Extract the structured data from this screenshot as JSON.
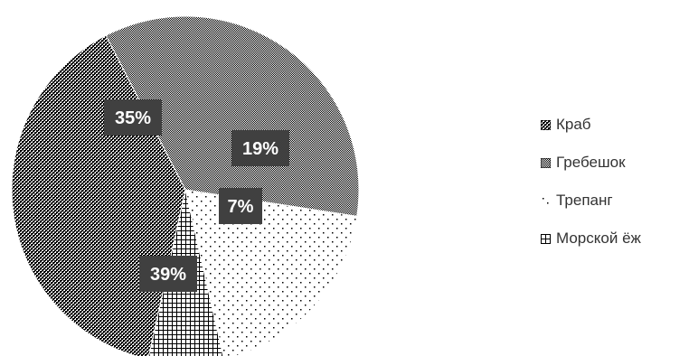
{
  "chart_data": {
    "type": "pie",
    "title": "",
    "slices": [
      {
        "name": "Морской ёж",
        "value": 7,
        "label": "7%",
        "pattern": "grid"
      },
      {
        "name": "Краб",
        "value": 39,
        "label": "39%",
        "pattern": "dense-checker"
      },
      {
        "name": "Гребешок",
        "value": 35,
        "label": "35%",
        "pattern": "fine-checker"
      },
      {
        "name": "Трепанг",
        "value": 19,
        "label": "19%",
        "pattern": "sparse-dots"
      }
    ],
    "legend": {
      "placement": "right",
      "entries": [
        "Краб",
        "Гребешок",
        "Трепанг",
        "Морской ёж"
      ]
    },
    "colors": {
      "ink": "#000000",
      "background": "#ffffff",
      "label_box": "#404040",
      "label_text": "#ffffff",
      "legend_text": "#333333"
    }
  }
}
